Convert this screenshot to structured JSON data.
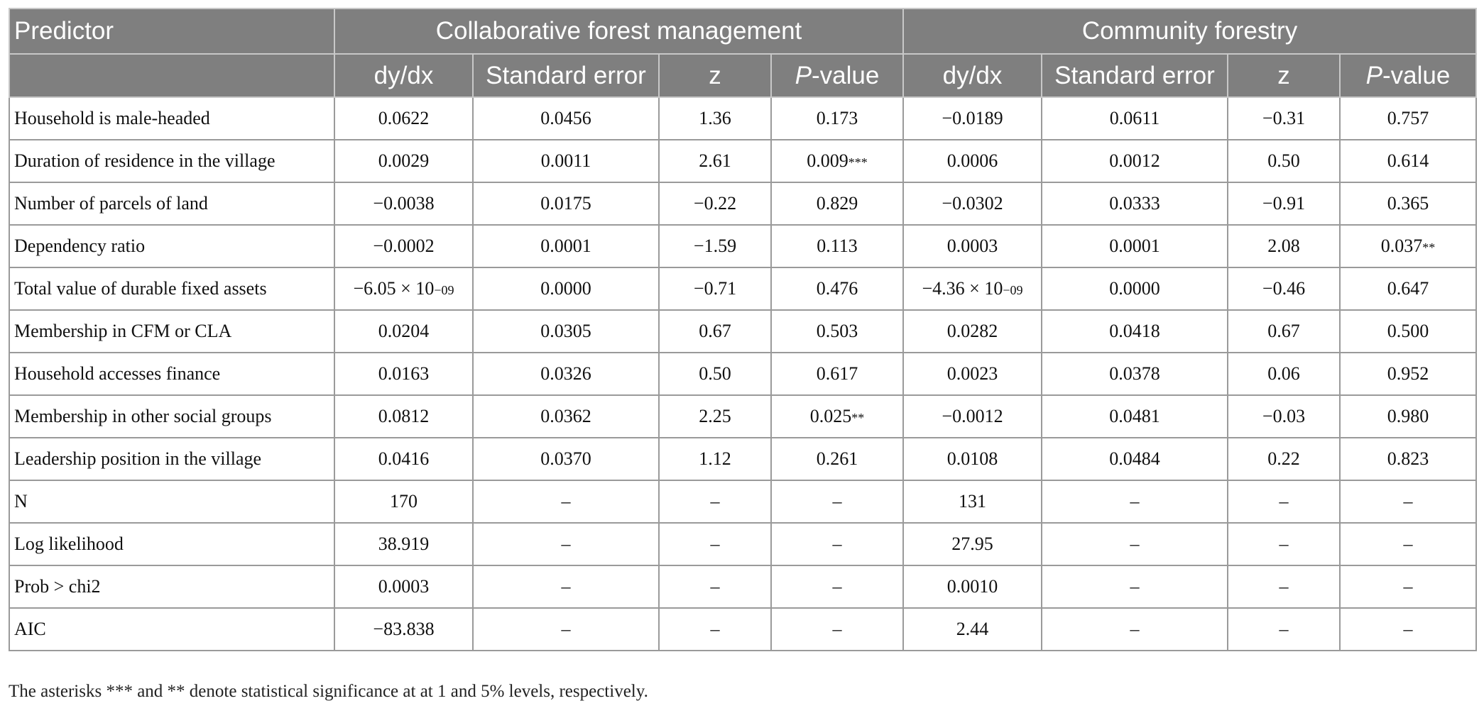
{
  "header": {
    "predictor": "Predictor",
    "group1": "Collaborative forest management",
    "group2": "Community forestry",
    "columns": [
      {
        "pre": "",
        "ital": "",
        "post": "dy/dx"
      },
      {
        "pre": "",
        "ital": "",
        "post": "Standard error"
      },
      {
        "pre": "",
        "ital": "",
        "post": "z"
      },
      {
        "pre": "",
        "ital": "P",
        "post": "-value"
      },
      {
        "pre": "",
        "ital": "",
        "post": "dy/dx"
      },
      {
        "pre": "",
        "ital": "",
        "post": "Standard error"
      },
      {
        "pre": "",
        "ital": "",
        "post": "z"
      },
      {
        "pre": "",
        "ital": "P",
        "post": "-value"
      }
    ]
  },
  "rows": [
    {
      "label": "Household is male-headed",
      "cells": [
        {
          "v": "0.0622"
        },
        {
          "v": "0.0456"
        },
        {
          "v": "1.36"
        },
        {
          "v": "0.173"
        },
        {
          "v": "−0.0189"
        },
        {
          "v": "0.0611"
        },
        {
          "v": "−0.31"
        },
        {
          "v": "0.757"
        }
      ]
    },
    {
      "label": "Duration of residence in the village",
      "cells": [
        {
          "v": "0.0029"
        },
        {
          "v": "0.0011"
        },
        {
          "v": "2.61"
        },
        {
          "v": "0.009",
          "sup": "***"
        },
        {
          "v": "0.0006"
        },
        {
          "v": "0.0012"
        },
        {
          "v": "0.50"
        },
        {
          "v": "0.614"
        }
      ]
    },
    {
      "label": "Number of parcels of land",
      "cells": [
        {
          "v": "−0.0038"
        },
        {
          "v": "0.0175"
        },
        {
          "v": "−0.22"
        },
        {
          "v": "0.829"
        },
        {
          "v": "−0.0302"
        },
        {
          "v": "0.0333"
        },
        {
          "v": "−0.91"
        },
        {
          "v": "0.365"
        }
      ]
    },
    {
      "label": "Dependency ratio",
      "cells": [
        {
          "v": "−0.0002"
        },
        {
          "v": "0.0001"
        },
        {
          "v": "−1.59"
        },
        {
          "v": "0.113"
        },
        {
          "v": "0.0003"
        },
        {
          "v": "0.0001"
        },
        {
          "v": "2.08"
        },
        {
          "v": "0.037",
          "sup": "**"
        }
      ]
    },
    {
      "label": "Total value of durable fixed assets",
      "cells": [
        {
          "v": "−6.05 × 10",
          "sup": "−09"
        },
        {
          "v": "0.0000"
        },
        {
          "v": "−0.71"
        },
        {
          "v": "0.476"
        },
        {
          "v": "−4.36 × 10",
          "sup": "−09"
        },
        {
          "v": "0.0000"
        },
        {
          "v": "−0.46"
        },
        {
          "v": "0.647"
        }
      ]
    },
    {
      "label": "Membership in CFM or CLA",
      "cells": [
        {
          "v": "0.0204"
        },
        {
          "v": "0.0305"
        },
        {
          "v": "0.67"
        },
        {
          "v": "0.503"
        },
        {
          "v": "0.0282"
        },
        {
          "v": "0.0418"
        },
        {
          "v": "0.67"
        },
        {
          "v": "0.500"
        }
      ]
    },
    {
      "label": "Household accesses finance",
      "cells": [
        {
          "v": "0.0163"
        },
        {
          "v": "0.0326"
        },
        {
          "v": "0.50"
        },
        {
          "v": "0.617"
        },
        {
          "v": "0.0023"
        },
        {
          "v": "0.0378"
        },
        {
          "v": "0.06"
        },
        {
          "v": "0.952"
        }
      ]
    },
    {
      "label": "Membership in other social groups",
      "cells": [
        {
          "v": "0.0812"
        },
        {
          "v": "0.0362"
        },
        {
          "v": "2.25"
        },
        {
          "v": "0.025",
          "sup": "**"
        },
        {
          "v": "−0.0012"
        },
        {
          "v": "0.0481"
        },
        {
          "v": "−0.03"
        },
        {
          "v": "0.980"
        }
      ]
    },
    {
      "label": "Leadership position in the village",
      "cells": [
        {
          "v": "0.0416"
        },
        {
          "v": "0.0370"
        },
        {
          "v": "1.12"
        },
        {
          "v": "0.261"
        },
        {
          "v": "0.0108"
        },
        {
          "v": "0.0484"
        },
        {
          "v": "0.22"
        },
        {
          "v": "0.823"
        }
      ]
    },
    {
      "label": "N",
      "cells": [
        {
          "v": "170"
        },
        {
          "v": "–"
        },
        {
          "v": "–"
        },
        {
          "v": "–"
        },
        {
          "v": "131"
        },
        {
          "v": "–"
        },
        {
          "v": "–"
        },
        {
          "v": "–"
        }
      ]
    },
    {
      "label": "Log likelihood",
      "cells": [
        {
          "v": "38.919"
        },
        {
          "v": "–"
        },
        {
          "v": "–"
        },
        {
          "v": "–"
        },
        {
          "v": "27.95"
        },
        {
          "v": "–"
        },
        {
          "v": "–"
        },
        {
          "v": "–"
        }
      ]
    },
    {
      "label": "Prob > chi2",
      "cells": [
        {
          "v": "0.0003"
        },
        {
          "v": "–"
        },
        {
          "v": "–"
        },
        {
          "v": "–"
        },
        {
          "v": "0.0010"
        },
        {
          "v": "–"
        },
        {
          "v": "–"
        },
        {
          "v": "–"
        }
      ]
    },
    {
      "label": "AIC",
      "cells": [
        {
          "v": "−83.838"
        },
        {
          "v": "–"
        },
        {
          "v": "–"
        },
        {
          "v": "–"
        },
        {
          "v": "2.44"
        },
        {
          "v": "–"
        },
        {
          "v": "–"
        },
        {
          "v": "–"
        }
      ]
    }
  ],
  "footnote": "The asterisks *** and ** denote statistical significance at at 1 and 5% levels, respectively."
}
